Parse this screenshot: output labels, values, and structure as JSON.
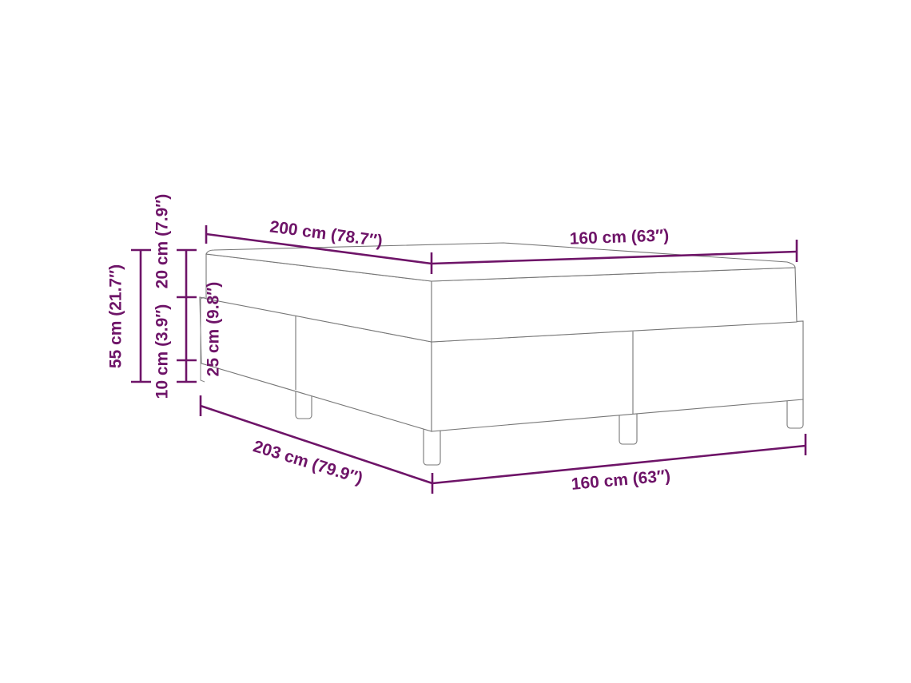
{
  "accent_color": "#6e1468",
  "outline_color": "#777777",
  "dimensions": {
    "top_length": "200 cm (78.7″)",
    "top_width": "160 cm (63″)",
    "bottom_length": "203 cm (79.9″)",
    "bottom_width": "160 cm (63″)",
    "total_height": "55 cm (21.7″)",
    "mattress_height": "20 cm (7.9″)",
    "leg_height": "10 cm (3.9″)",
    "base_height": "25 cm (9.8″)"
  }
}
